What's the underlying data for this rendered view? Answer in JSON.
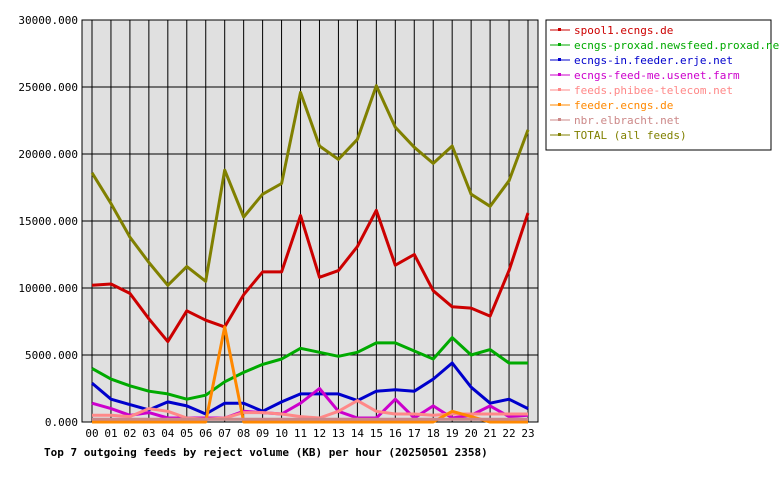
{
  "chart_data": {
    "type": "line",
    "title": "Top 7 outgoing feeds by reject volume (KB) per hour (20250501 2358)",
    "categories": [
      "00",
      "01",
      "02",
      "03",
      "04",
      "05",
      "06",
      "07",
      "08",
      "09",
      "10",
      "11",
      "12",
      "13",
      "14",
      "15",
      "16",
      "17",
      "18",
      "19",
      "20",
      "21",
      "22",
      "23"
    ],
    "ylim": [
      0,
      30000
    ],
    "yticks": [
      "0.000",
      "5000.000",
      "10000.000",
      "15000.000",
      "20000.000",
      "25000.000",
      "30000.000"
    ],
    "ytick_values": [
      0,
      5000,
      10000,
      15000,
      20000,
      25000,
      30000
    ],
    "grid": true,
    "plot_background": "#e0e0e0",
    "legend_position": "right",
    "series": [
      {
        "name": "spool1.ecngs.de",
        "color": "#cc0000",
        "values": [
          10200,
          10300,
          9600,
          7700,
          6000,
          8300,
          7600,
          7100,
          9500,
          11200,
          11200,
          15400,
          10800,
          11300,
          13100,
          15800,
          11700,
          12500,
          9800,
          8600,
          8500,
          7900,
          11300,
          15600
        ]
      },
      {
        "name": "ecngs-proxad.newsfeed.proxad.net",
        "color": "#00aa00",
        "values": [
          4000,
          3200,
          2700,
          2300,
          2100,
          1700,
          2000,
          3000,
          3700,
          4300,
          4700,
          5500,
          5200,
          4900,
          5200,
          5900,
          5900,
          5300,
          4700,
          6300,
          5000,
          5400,
          4400,
          4400
        ]
      },
      {
        "name": "ecngs-in.feeder.erje.net",
        "color": "#0000cc",
        "values": [
          2900,
          1700,
          1300,
          900,
          1500,
          1200,
          600,
          1400,
          1400,
          800,
          1500,
          2100,
          2100,
          2100,
          1600,
          2300,
          2400,
          2300,
          3200,
          4400,
          2600,
          1400,
          1700,
          1000
        ]
      },
      {
        "name": "ecngs-feed-me.usenet.farm",
        "color": "#cc00cc",
        "values": [
          1400,
          1000,
          500,
          700,
          300,
          300,
          300,
          300,
          800,
          700,
          600,
          1400,
          2500,
          800,
          300,
          300,
          1700,
          300,
          1200,
          300,
          500,
          1200,
          400,
          500
        ]
      },
      {
        "name": "feeds.phibee-telecom.net",
        "color": "#ff8888",
        "values": [
          500,
          500,
          400,
          1000,
          800,
          300,
          200,
          300,
          700,
          700,
          600,
          400,
          300,
          800,
          1600,
          800,
          600,
          600,
          500,
          600,
          600,
          600,
          600,
          600
        ]
      },
      {
        "name": "feeder.ecngs.de",
        "color": "#ff8800",
        "values": [
          0,
          0,
          0,
          0,
          0,
          0,
          0,
          7100,
          0,
          0,
          0,
          0,
          0,
          0,
          0,
          0,
          0,
          0,
          0,
          800,
          400,
          0,
          0,
          0
        ]
      },
      {
        "name": "nbr.elbracht.net",
        "color": "#cc8888",
        "values": [
          200,
          200,
          200,
          200,
          200,
          200,
          200,
          200,
          200,
          200,
          200,
          200,
          200,
          200,
          200,
          200,
          200,
          200,
          200,
          200,
          200,
          200,
          200,
          200
        ]
      },
      {
        "name": "TOTAL (all feeds)",
        "color": "#808000",
        "values": [
          18600,
          16300,
          13800,
          11900,
          10200,
          11600,
          10500,
          18800,
          15300,
          17000,
          17800,
          24600,
          20600,
          19600,
          21100,
          25100,
          22000,
          20500,
          19300,
          20600,
          17000,
          16100,
          18000,
          21800
        ]
      }
    ]
  }
}
